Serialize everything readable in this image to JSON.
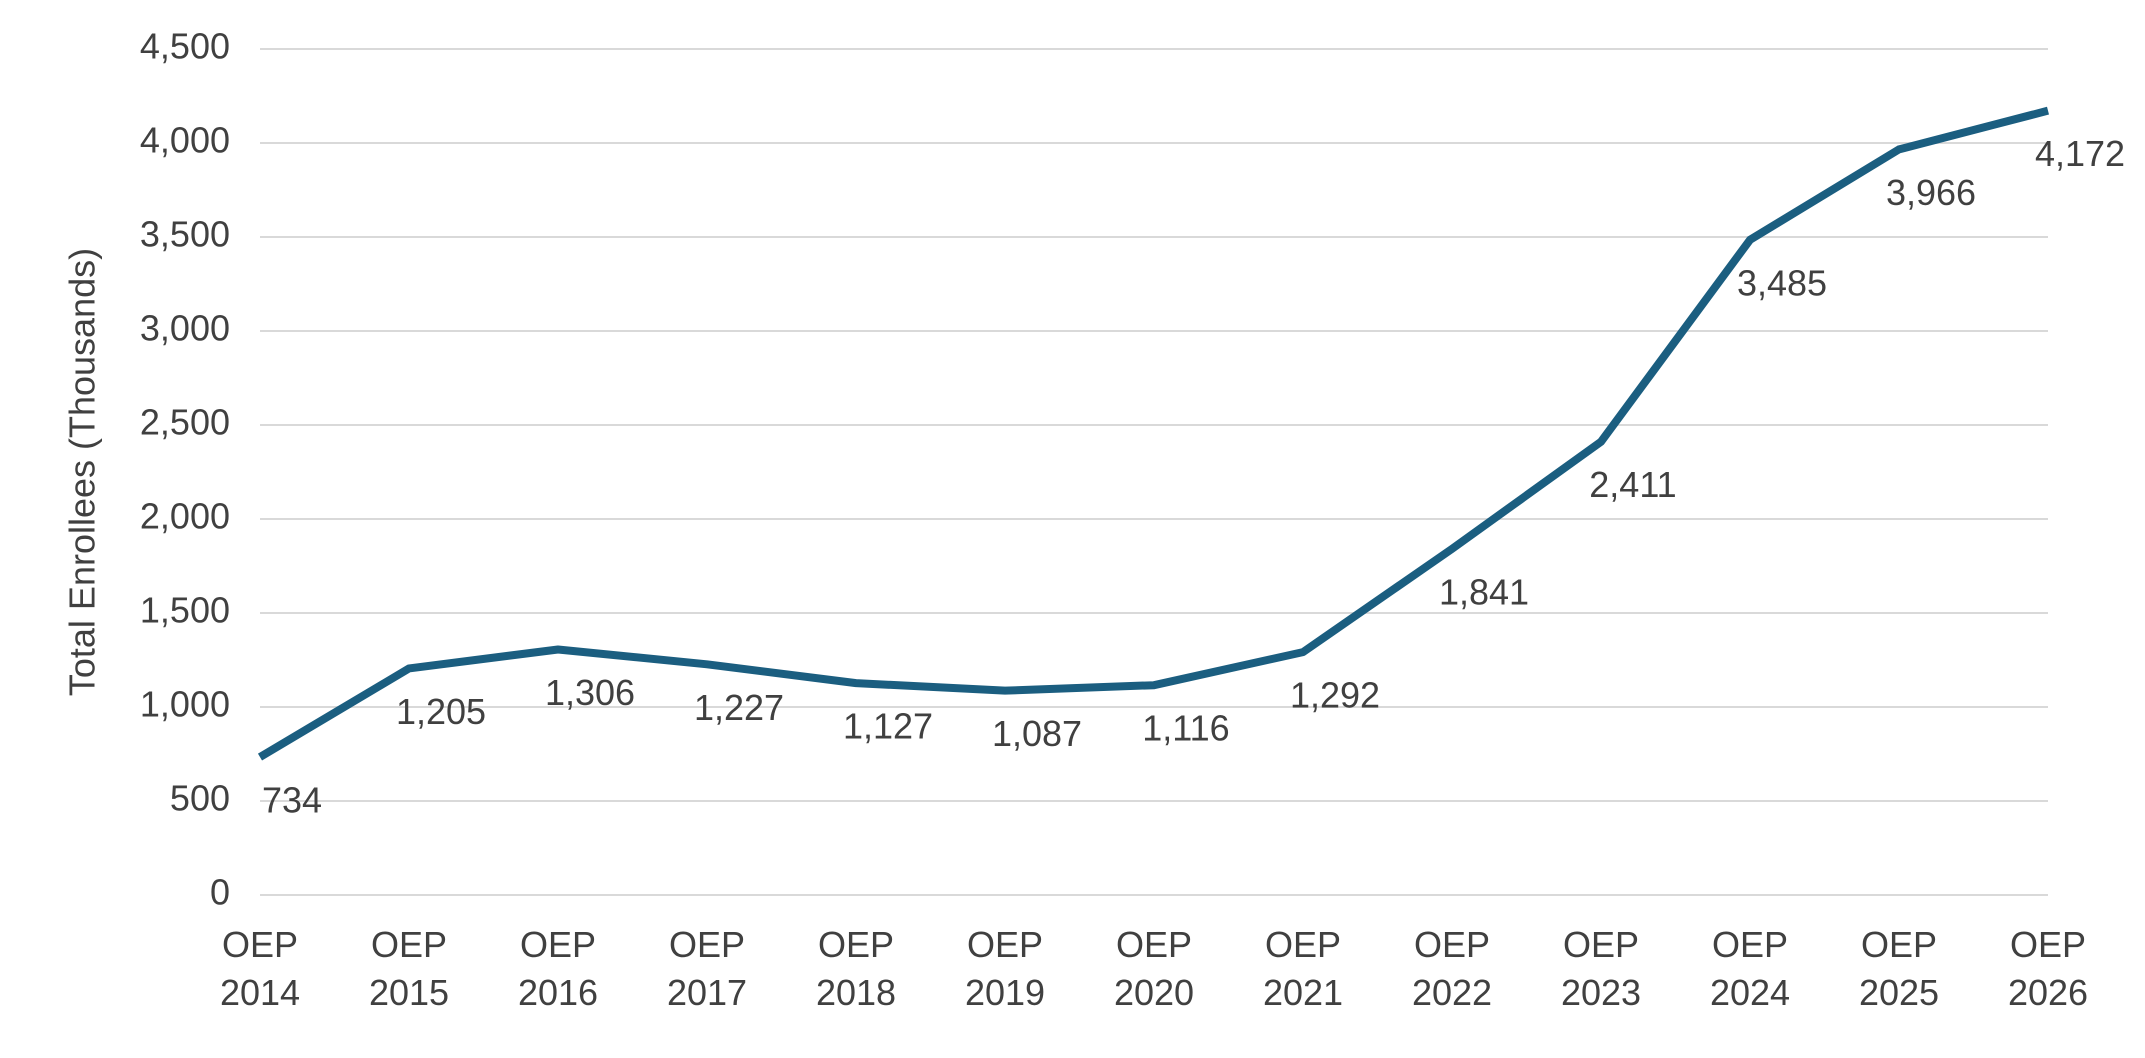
{
  "chart_data": {
    "type": "line",
    "y_label": "Total Enrollees (Thousands)",
    "categories": [
      "OEP 2014",
      "OEP 2015",
      "OEP 2016",
      "OEP 2017",
      "OEP 2018",
      "OEP 2019",
      "OEP 2020",
      "OEP 2021",
      "OEP 2022",
      "OEP 2023",
      "OEP 2024",
      "OEP 2025",
      "OEP 2026"
    ],
    "values": [
      734,
      1205,
      1306,
      1227,
      1127,
      1087,
      1116,
      1292,
      1841,
      2411,
      3485,
      3966,
      4172
    ],
    "value_labels": [
      "734",
      "1,205",
      "1,306",
      "1,227",
      "1,127",
      "1,087",
      "1,116",
      "1,292",
      "1,841",
      "2,411",
      "3,485",
      "3,966",
      "4,172"
    ],
    "color": "#1b5e80",
    "ylim": [
      0,
      4500
    ],
    "yticks": [
      0,
      500,
      {
        "value": 1000,
        "label": "1,000"
      },
      {
        "value": 1500,
        "label": "1,500"
      },
      {
        "value": 2000,
        "label": "2,000"
      },
      {
        "value": 2500,
        "label": "2,500"
      },
      {
        "value": 3000,
        "label": "3,000"
      },
      {
        "value": 3500,
        "label": "3,500"
      },
      {
        "value": 4000,
        "label": "4,000"
      },
      {
        "value": 4500,
        "label": "4,500"
      }
    ],
    "grid": true
  }
}
